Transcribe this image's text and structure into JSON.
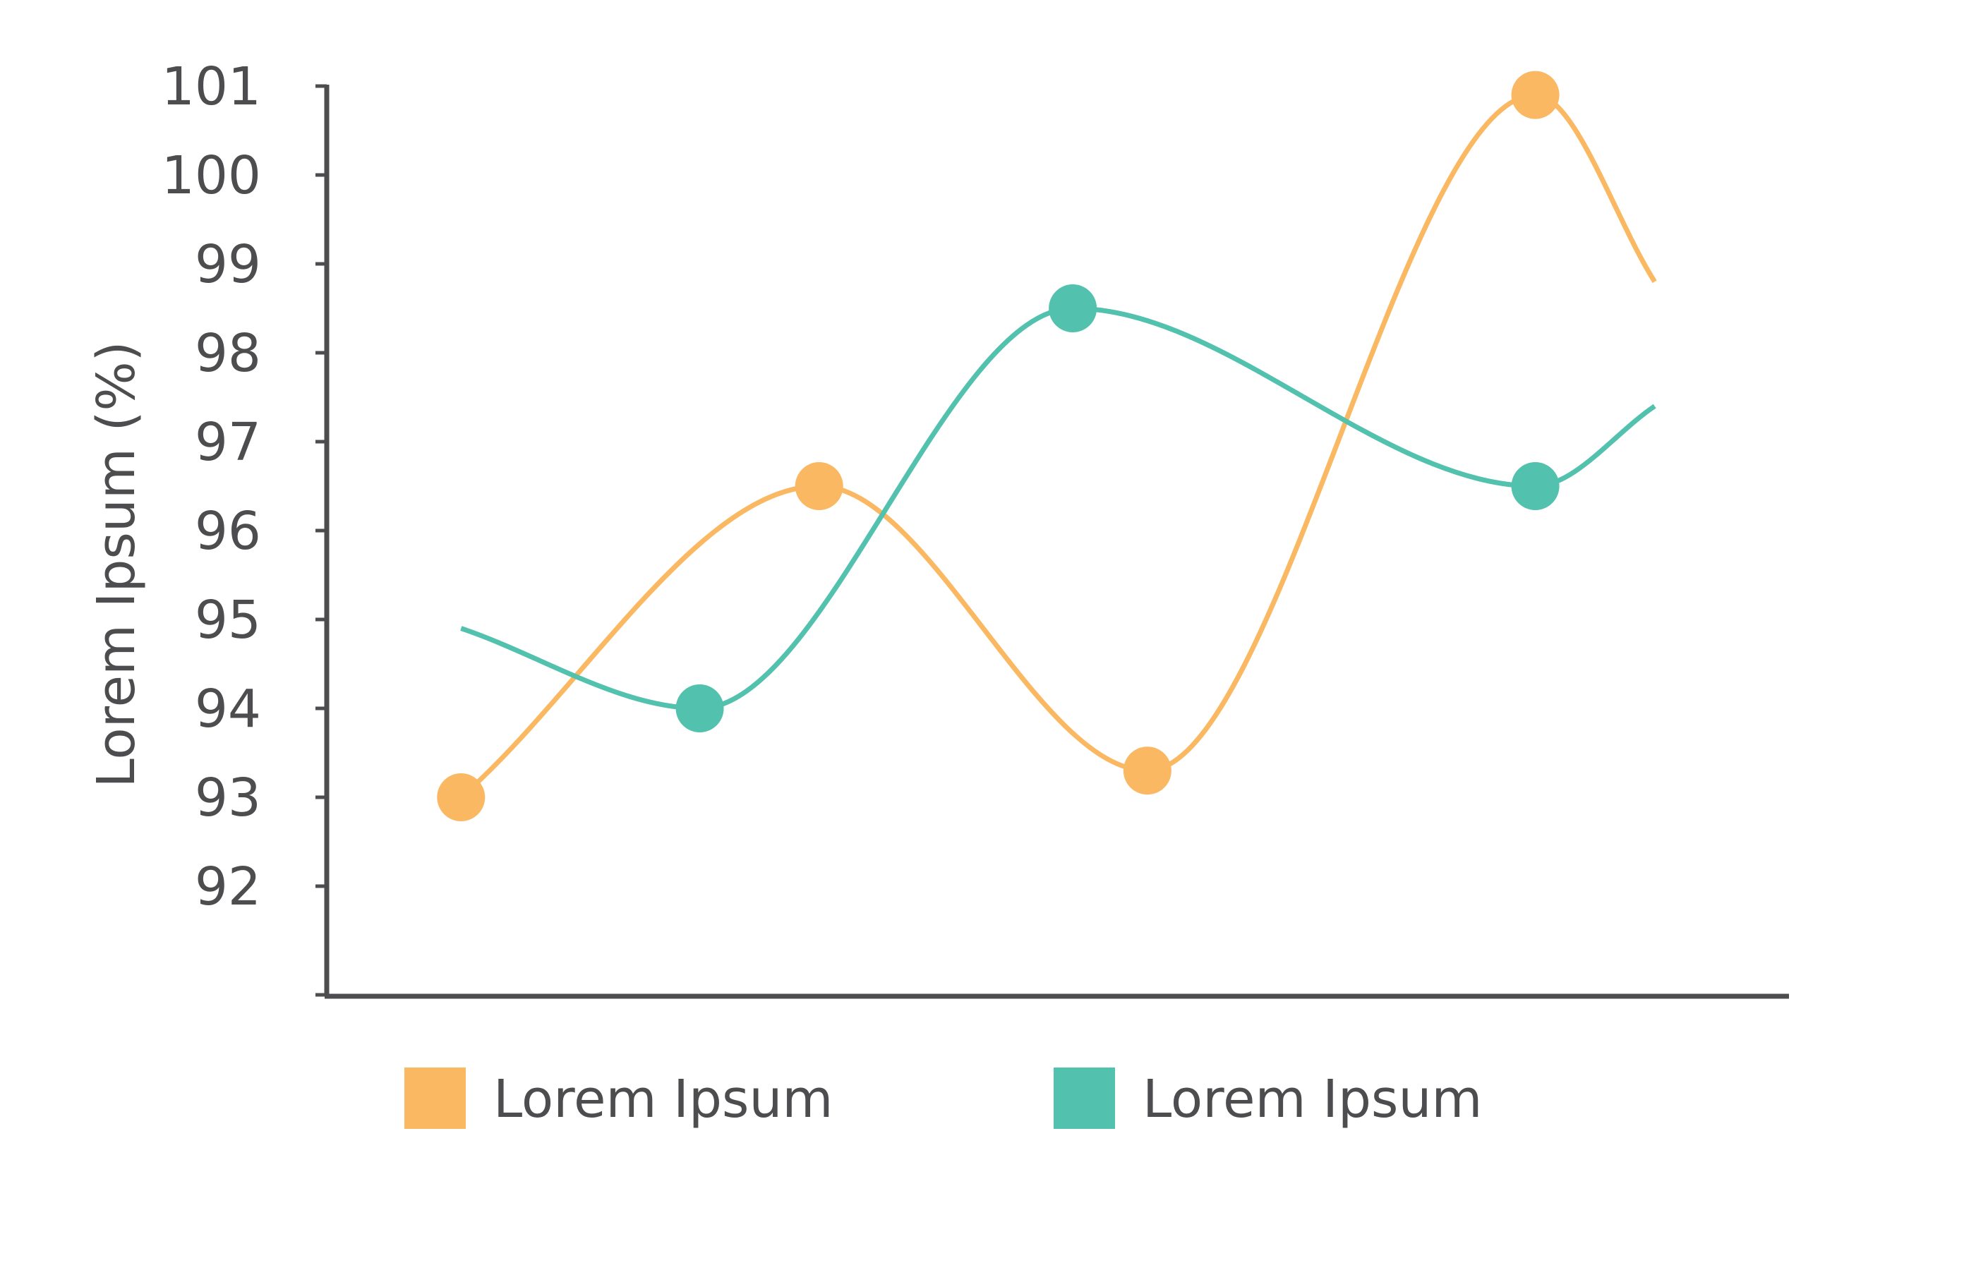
{
  "chart_data": {
    "type": "line",
    "ylabel": "Lorem Ipsum (%)",
    "xlabel": "",
    "ylim": [
      91,
      101
    ],
    "yticks": [
      92,
      93,
      94,
      95,
      96,
      97,
      98,
      99,
      100,
      101
    ],
    "smooth": true,
    "grid": false,
    "legend_position": "bottom",
    "series": [
      {
        "name": "Lorem Ipsum",
        "color": "#fbb862",
        "points": [
          {
            "x": 1.0,
            "y": 93.0
          },
          {
            "x": 2.2,
            "y": 96.5
          },
          {
            "x": 3.3,
            "y": 93.3
          },
          {
            "x": 4.6,
            "y": 100.9
          }
        ],
        "line_end": {
          "x": 5.0,
          "y": 98.8
        }
      },
      {
        "name": "Lorem Ipsum",
        "color": "#52c1ad",
        "line_start": {
          "x": 1.0,
          "y": 94.9
        },
        "points": [
          {
            "x": 1.8,
            "y": 94.0
          },
          {
            "x": 3.05,
            "y": 98.5
          },
          {
            "x": 4.6,
            "y": 96.5
          }
        ],
        "line_end": {
          "x": 5.0,
          "y": 97.4
        }
      }
    ],
    "axis_color": "#4d4d4f",
    "text_color": "#4d4d4f"
  }
}
